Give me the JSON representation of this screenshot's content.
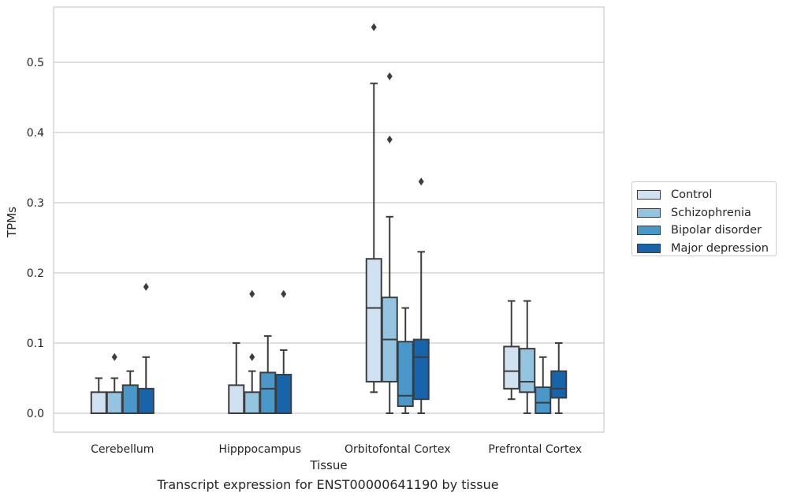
{
  "chart_data": {
    "type": "box",
    "xlabel": "Tissue",
    "ylabel": "TPMs",
    "caption": "Transcript expression for ENST00000641190 by tissue",
    "ylim": [
      -0.027,
      0.58
    ],
    "yticks": [
      0.0,
      0.1,
      0.2,
      0.3,
      0.4,
      0.5
    ],
    "ytick_labels": [
      "0.0",
      "0.1",
      "0.2",
      "0.3",
      "0.4",
      "0.5"
    ],
    "grid": "horizontal",
    "legend_position": "right",
    "categories": [
      "Cerebellum",
      "Hipppocampus",
      "Orbitofontal Cortex",
      "Prefrontal Cortex"
    ],
    "series": [
      {
        "name": "Control",
        "color": "#d0e1f2",
        "boxes": [
          {
            "whisker_low": 0.0,
            "q1": 0.0,
            "median": 0.0,
            "q3": 0.03,
            "whisker_high": 0.05,
            "outliers": []
          },
          {
            "whisker_low": 0.0,
            "q1": 0.0,
            "median": 0.0,
            "q3": 0.04,
            "whisker_high": 0.1,
            "outliers": []
          },
          {
            "whisker_low": 0.03,
            "q1": 0.045,
            "median": 0.15,
            "q3": 0.22,
            "whisker_high": 0.47,
            "outliers": [
              0.55
            ]
          },
          {
            "whisker_low": 0.02,
            "q1": 0.035,
            "median": 0.06,
            "q3": 0.095,
            "whisker_high": 0.16,
            "outliers": []
          }
        ]
      },
      {
        "name": "Schizophrenia",
        "color": "#94c4df",
        "boxes": [
          {
            "whisker_low": 0.0,
            "q1": 0.0,
            "median": 0.0,
            "q3": 0.03,
            "whisker_high": 0.05,
            "outliers": [
              0.08
            ]
          },
          {
            "whisker_low": 0.0,
            "q1": 0.0,
            "median": 0.0,
            "q3": 0.03,
            "whisker_high": 0.06,
            "outliers": [
              0.08,
              0.17
            ]
          },
          {
            "whisker_low": 0.0,
            "q1": 0.045,
            "median": 0.105,
            "q3": 0.165,
            "whisker_high": 0.28,
            "outliers": [
              0.39,
              0.48
            ]
          },
          {
            "whisker_low": 0.0,
            "q1": 0.03,
            "median": 0.045,
            "q3": 0.092,
            "whisker_high": 0.16,
            "outliers": []
          }
        ]
      },
      {
        "name": "Bipolar disorder",
        "color": "#4a98c9",
        "boxes": [
          {
            "whisker_low": 0.0,
            "q1": 0.0,
            "median": 0.0,
            "q3": 0.04,
            "whisker_high": 0.06,
            "outliers": []
          },
          {
            "whisker_low": 0.0,
            "q1": 0.0,
            "median": 0.035,
            "q3": 0.058,
            "whisker_high": 0.11,
            "outliers": []
          },
          {
            "whisker_low": 0.0,
            "q1": 0.01,
            "median": 0.025,
            "q3": 0.102,
            "whisker_high": 0.15,
            "outliers": []
          },
          {
            "whisker_low": 0.0,
            "q1": 0.0,
            "median": 0.015,
            "q3": 0.037,
            "whisker_high": 0.08,
            "outliers": []
          }
        ]
      },
      {
        "name": "Major depression",
        "color": "#1764ab",
        "boxes": [
          {
            "whisker_low": 0.0,
            "q1": 0.0,
            "median": 0.0,
            "q3": 0.035,
            "whisker_high": 0.08,
            "outliers": [
              0.18
            ]
          },
          {
            "whisker_low": 0.0,
            "q1": 0.0,
            "median": 0.0,
            "q3": 0.055,
            "whisker_high": 0.09,
            "outliers": [
              0.17
            ]
          },
          {
            "whisker_low": 0.0,
            "q1": 0.02,
            "median": 0.08,
            "q3": 0.105,
            "whisker_high": 0.23,
            "outliers": [
              0.33
            ]
          },
          {
            "whisker_low": 0.0,
            "q1": 0.022,
            "median": 0.035,
            "q3": 0.06,
            "whisker_high": 0.1,
            "outliers": []
          }
        ]
      }
    ]
  }
}
